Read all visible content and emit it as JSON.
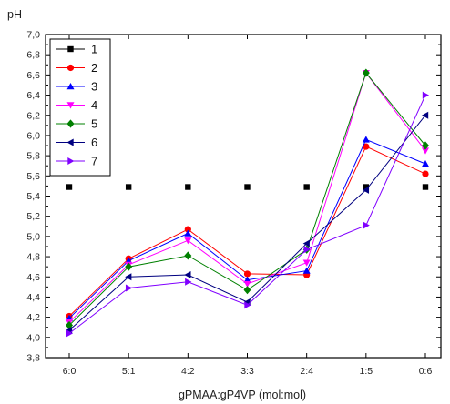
{
  "chart_data": {
    "type": "line",
    "title": "",
    "xlabel": "gPMAA:gP4VP (mol:mol)",
    "ylabel": "pH",
    "categories": [
      "6:0",
      "5:1",
      "4:2",
      "3:3",
      "2:4",
      "1:5",
      "0:6"
    ],
    "ylim": [
      3.8,
      7.0
    ],
    "yticks": [
      "3,8",
      "4,0",
      "4,2",
      "4,4",
      "4,6",
      "4,8",
      "5,0",
      "5,2",
      "5,4",
      "5,6",
      "5,8",
      "6,0",
      "6,2",
      "6,4",
      "6,6",
      "6,8",
      "7,0"
    ],
    "grid": false,
    "legend_position": "top-left",
    "series": [
      {
        "name": "1",
        "color": "#000000",
        "marker": "square",
        "values": [
          5.49,
          5.49,
          5.49,
          5.49,
          5.49,
          5.49,
          5.49
        ]
      },
      {
        "name": "2",
        "color": "#ff0000",
        "marker": "circle",
        "values": [
          4.21,
          4.78,
          5.07,
          4.63,
          4.62,
          5.89,
          5.62
        ]
      },
      {
        "name": "3",
        "color": "#0000ff",
        "marker": "triangle-up",
        "values": [
          4.19,
          4.76,
          5.03,
          4.57,
          4.66,
          5.96,
          5.72
        ]
      },
      {
        "name": "4",
        "color": "#ff00ff",
        "marker": "triangle-down",
        "values": [
          4.15,
          4.72,
          4.96,
          4.53,
          4.74,
          6.62,
          5.85
        ]
      },
      {
        "name": "5",
        "color": "#008000",
        "marker": "diamond",
        "values": [
          4.12,
          4.7,
          4.81,
          4.47,
          4.87,
          6.62,
          5.9
        ]
      },
      {
        "name": "6",
        "color": "#000080",
        "marker": "triangle-left",
        "values": [
          4.07,
          4.6,
          4.62,
          4.35,
          4.93,
          5.46,
          6.2
        ]
      },
      {
        "name": "7",
        "color": "#8000ff",
        "marker": "triangle-right",
        "values": [
          4.04,
          4.49,
          4.55,
          4.32,
          4.87,
          5.11,
          6.4
        ]
      }
    ]
  }
}
